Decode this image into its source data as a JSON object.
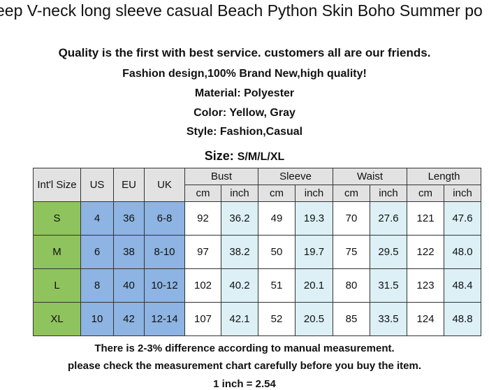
{
  "header": {
    "title": "eep V-neck long sleeve casual Beach Python Skin Boho Summer po"
  },
  "intro": {
    "lines": [
      "Quality is the first with best service. customers all are our friends.",
      "Fashion design,100% Brand New,high quality!",
      "Material: Polyester",
      "Color: Yellow, Gray",
      "Style: Fashion,Casual"
    ],
    "size_label": "Size:",
    "size_value": "S/M/L/XL"
  },
  "table": {
    "fixed_headers": [
      "Int'l Size",
      "US",
      "EU",
      "UK"
    ],
    "groups": [
      "Bust",
      "Sleeve",
      "Waist",
      "Length"
    ],
    "units": [
      "cm",
      "inch",
      "cm",
      "inch",
      "cm",
      "inch",
      "cm",
      "inch"
    ],
    "rows": [
      [
        "S",
        "4",
        "36",
        "6-8",
        "92",
        "36.2",
        "49",
        "19.3",
        "70",
        "27.6",
        "121",
        "47.6"
      ],
      [
        "M",
        "6",
        "38",
        "8-10",
        "97",
        "38.2",
        "50",
        "19.7",
        "75",
        "29.5",
        "122",
        "48.0"
      ],
      [
        "L",
        "8",
        "40",
        "10-12",
        "102",
        "40.2",
        "51",
        "20.1",
        "80",
        "31.5",
        "123",
        "48.4"
      ],
      [
        "XL",
        "10",
        "42",
        "12-14",
        "107",
        "42.1",
        "52",
        "20.5",
        "85",
        "33.5",
        "124",
        "48.8"
      ]
    ]
  },
  "footer": {
    "lines": [
      "There is 2-3% difference according to manual measurement.",
      "please check the measurement chart carefully before you buy the item.",
      "1 inch = 2.54"
    ]
  }
}
